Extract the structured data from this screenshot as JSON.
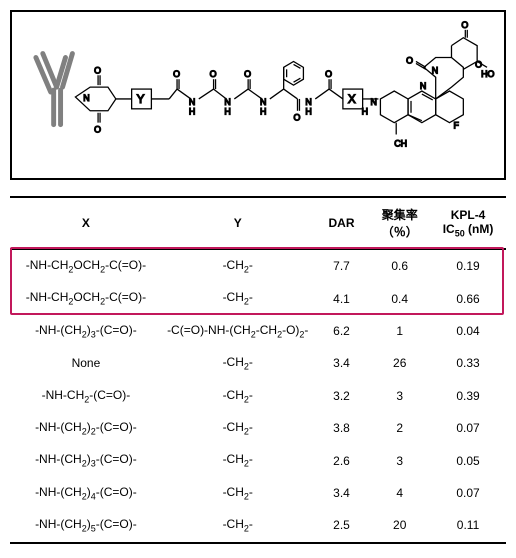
{
  "diagram": {
    "placeholders": {
      "X": "X",
      "Y": "Y"
    },
    "border_color": "#000000",
    "molecule_color": "#000000",
    "antibody_color": "#808080"
  },
  "table": {
    "headers": {
      "x": "X",
      "y": "Y",
      "dar": "DAR",
      "agg_line1": "聚集率",
      "agg_line2": "（％）",
      "ic50_line1": "KPL-4",
      "ic50_line2_prefix": "IC",
      "ic50_line2_sub": "50",
      "ic50_line2_suffix": " (nM)"
    },
    "frags": {
      "NH": "-NH-",
      "CH2": "CH",
      "s2": "2",
      "OCH2": "OCH",
      "CeqO": "-C(=O)-",
      "dash": "-",
      "None": "None",
      "openP": "(",
      "closeP": ")",
      "s3": "3",
      "s4": "4",
      "s5": "5",
      "y_std_pre": "-CH",
      "y_std_suf": "-",
      "y_complex_1": "-C(=O)-NH-(CH",
      "y_complex_2": "-CH",
      "y_complex_3": "-O)",
      "y_complex_4": "-"
    },
    "rows": [
      {
        "xType": "ch2och2",
        "yType": "std",
        "dar": "7.7",
        "agg": "0.6",
        "ic50": "0.19",
        "hl": true
      },
      {
        "xType": "ch2och2",
        "yType": "std",
        "dar": "4.1",
        "agg": "0.4",
        "ic50": "0.66",
        "hl": true
      },
      {
        "xType": "chainN",
        "xn": "s3",
        "yType": "complex",
        "dar": "6.2",
        "agg": "1",
        "ic50": "0.04"
      },
      {
        "xType": "none",
        "yType": "std",
        "dar": "3.4",
        "agg": "26",
        "ic50": "0.33"
      },
      {
        "xType": "ch2",
        "yType": "std",
        "dar": "3.2",
        "agg": "3",
        "ic50": "0.39"
      },
      {
        "xType": "chainN",
        "xn": "s2",
        "yType": "std",
        "dar": "3.8",
        "agg": "2",
        "ic50": "0.07"
      },
      {
        "xType": "chainN",
        "xn": "s3",
        "yType": "std",
        "dar": "2.6",
        "agg": "3",
        "ic50": "0.05"
      },
      {
        "xType": "chainN",
        "xn": "s4",
        "yType": "std",
        "dar": "3.4",
        "agg": "4",
        "ic50": "0.07"
      },
      {
        "xType": "chainN",
        "xn": "s5",
        "yType": "std",
        "dar": "2.5",
        "agg": "20",
        "ic50": "0.11"
      }
    ],
    "highlight": {
      "color": "#c2185b"
    }
  }
}
